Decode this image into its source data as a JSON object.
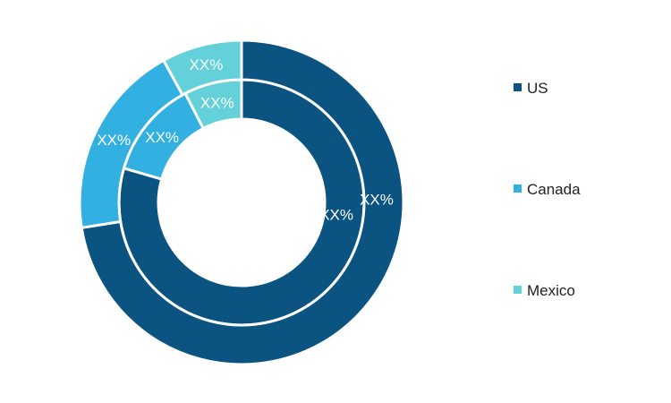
{
  "chart_data": {
    "type": "pie",
    "variant": "nested-donut",
    "categories": [
      "US",
      "Canada",
      "Mexico"
    ],
    "colors": [
      "#0b5482",
      "#31b0e1",
      "#64d0da"
    ],
    "series": [
      {
        "values": [
          79.5,
          12.9,
          7.6
        ],
        "labels": [
          "XX%",
          "XX%",
          "XX%"
        ]
      },
      {
        "values": [
          72.5,
          19.5,
          8.0
        ],
        "labels": [
          "XX%",
          "XX%",
          "XX%"
        ]
      }
    ],
    "legend": {
      "position": "right",
      "items": [
        "US",
        "Canada",
        "Mexico"
      ]
    }
  }
}
